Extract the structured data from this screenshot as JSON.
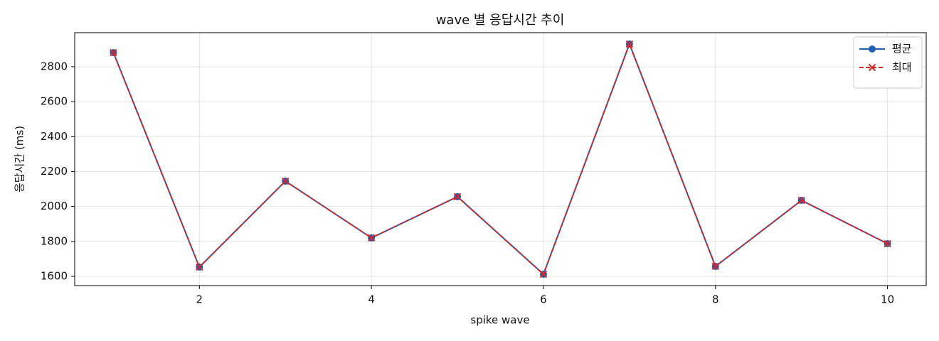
{
  "chart_data": {
    "type": "line",
    "title": "wave 별 응답시간 추이",
    "x_label": "spike wave",
    "y_label": "응답시간 (ms)",
    "x": [
      1,
      2,
      3,
      4,
      5,
      6,
      7,
      8,
      9,
      10
    ],
    "series": [
      {
        "name": "평균",
        "color": "#1f5fb4",
        "dash": false,
        "marker": "circle",
        "values": [
          2881,
          1653,
          2145,
          1820,
          2056,
          1612,
          2930,
          1657,
          2035,
          1787
        ]
      },
      {
        "name": "최대",
        "color": "#d62728",
        "dash": true,
        "marker": "x",
        "values": [
          2881,
          1653,
          2145,
          1820,
          2056,
          1612,
          2930,
          1657,
          2035,
          1787
        ]
      }
    ],
    "xlim": [
      0.55,
      10.45
    ],
    "xticks": [
      2,
      4,
      6,
      8,
      10
    ],
    "ylim": [
      1547,
      2995
    ],
    "yticks": [
      1600,
      1800,
      2000,
      2200,
      2400,
      2600,
      2800
    ],
    "grid": true,
    "legend": "upper right"
  }
}
